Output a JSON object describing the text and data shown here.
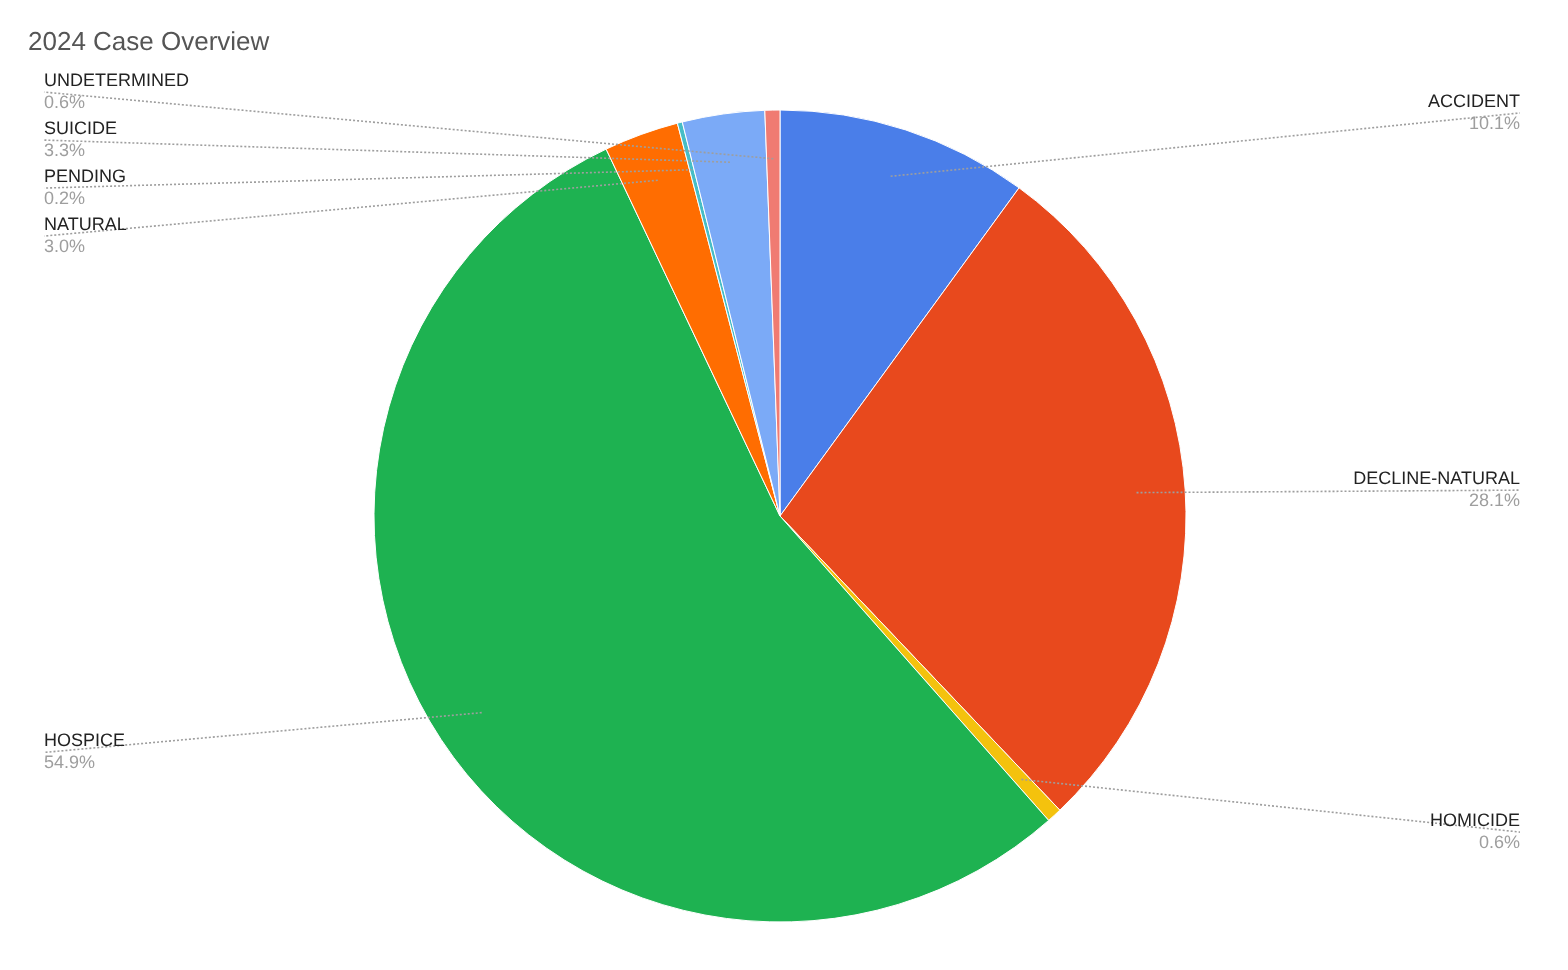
{
  "chart_data": {
    "type": "pie",
    "title": "2024 Case Overview",
    "categories": [
      "ACCIDENT",
      "DECLINE-NATURAL",
      "HOMICIDE",
      "HOSPICE",
      "NATURAL",
      "PENDING",
      "SUICIDE",
      "UNDETERMINED"
    ],
    "values": [
      10.1,
      28.1,
      0.6,
      54.9,
      3.0,
      0.2,
      3.3,
      0.6
    ],
    "value_labels": [
      "10.1%",
      "28.1%",
      "0.6%",
      "54.9%",
      "3.0%",
      "0.2%",
      "3.3%",
      "0.6%"
    ],
    "colors": [
      "#4a7ee9",
      "#e8491d",
      "#f4c20d",
      "#1eb251",
      "#ff6d01",
      "#46bdc6",
      "#7baaf7",
      "#f07b72"
    ],
    "legend": false
  }
}
